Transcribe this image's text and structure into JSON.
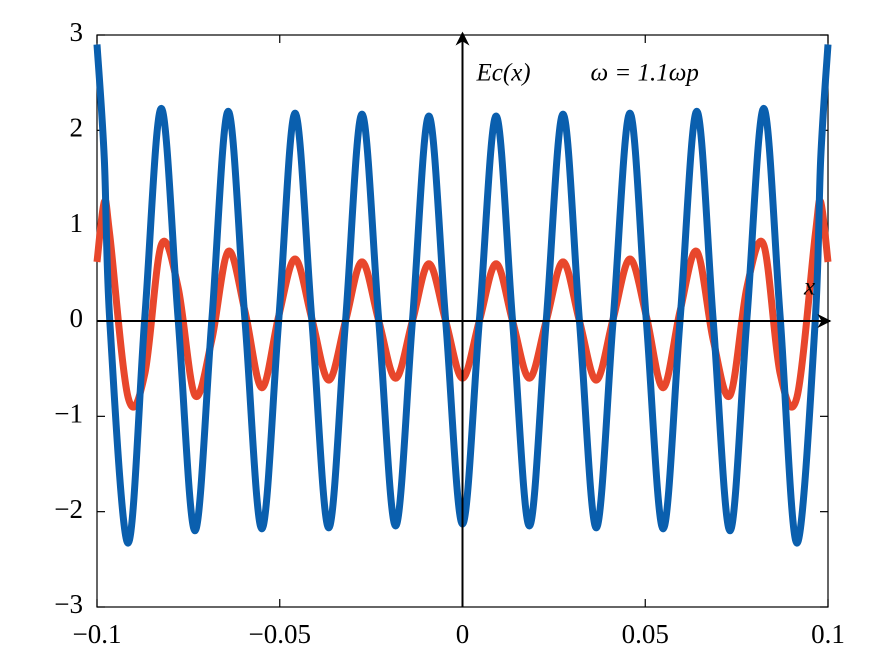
{
  "chart_data": {
    "type": "line",
    "annotations": [
      "Ec(x)",
      "ω = 1.1ωp",
      "x"
    ],
    "x": [
      -0.1,
      -0.098,
      -0.0965,
      -0.0915,
      -0.0869,
      -0.0824,
      -0.0778,
      -0.0732,
      -0.0686,
      -0.0641,
      -0.0595,
      -0.0549,
      -0.0503,
      -0.0458,
      -0.0412,
      -0.0366,
      -0.032,
      -0.0275,
      -0.0229,
      -0.0183,
      -0.0137,
      -0.0092,
      -0.0046,
      0,
      0.0046,
      0.0092,
      0.0137,
      0.0183,
      0.0229,
      0.0275,
      0.032,
      0.0366,
      0.0412,
      0.0458,
      0.0503,
      0.0549,
      0.0595,
      0.0641,
      0.0686,
      0.0732,
      0.0778,
      0.0824,
      0.0869,
      0.0915,
      0.0965,
      0.098,
      0.1
    ],
    "series": [
      {
        "color": "#e8472c",
        "values": [
          0.62,
          1.25,
          0.9,
          -0.8,
          -0.55,
          0.8,
          0.35,
          -0.78,
          -0.2,
          0.73,
          0.1,
          -0.7,
          0.05,
          0.65,
          0.02,
          -0.62,
          0,
          0.62,
          0,
          -0.6,
          0,
          0.6,
          0,
          -0.6,
          0,
          0.6,
          0,
          -0.6,
          0,
          0.62,
          0,
          -0.62,
          0.02,
          0.65,
          0.05,
          -0.7,
          0.1,
          0.73,
          -0.2,
          -0.78,
          0.35,
          0.8,
          -0.55,
          -0.8,
          0.9,
          1.25,
          0.62
        ]
      },
      {
        "color": "#0a5fae",
        "values": [
          2.9,
          1.7,
          0,
          -2.33,
          0.05,
          2.23,
          0.02,
          -2.2,
          0,
          2.2,
          0,
          -2.18,
          0,
          2.18,
          0,
          -2.17,
          0,
          2.17,
          0,
          -2.15,
          0,
          2.15,
          0,
          -2.13,
          0,
          2.15,
          0,
          -2.15,
          0,
          2.17,
          0,
          -2.17,
          0,
          2.18,
          0,
          -2.18,
          0,
          2.2,
          0,
          -2.2,
          0.02,
          2.23,
          0.05,
          -2.33,
          0,
          1.7,
          2.9
        ]
      }
    ],
    "xlim": [
      -0.1,
      0.1
    ],
    "ylim": [
      -3,
      3
    ],
    "xticks": [
      {
        "value": -0.1,
        "label": "−0.1"
      },
      {
        "value": -0.05,
        "label": "−0.05"
      },
      0,
      0.05,
      0.1
    ],
    "yticks": [
      {
        "value": -3,
        "label": "−3"
      },
      {
        "value": -2,
        "label": "−2"
      },
      {
        "value": -1,
        "label": "−1"
      },
      0,
      1,
      2,
      3
    ]
  }
}
